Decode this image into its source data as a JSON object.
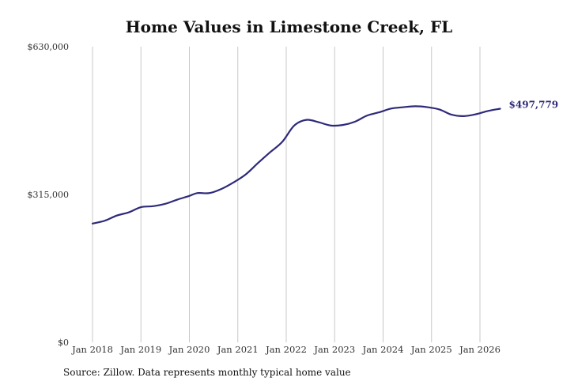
{
  "chart_data": {
    "type": "line",
    "title": "Home Values in Limestone Creek, FL",
    "source": "Source: Zillow. Data represents monthly typical home value",
    "ylim": [
      0,
      630000
    ],
    "yticks": [
      {
        "value": 0,
        "label": "$0"
      },
      {
        "value": 315000,
        "label": "$315,000"
      },
      {
        "value": 630000,
        "label": "$630,000"
      }
    ],
    "xticks": [
      "Jan 2018",
      "Jan 2019",
      "Jan 2020",
      "Jan 2021",
      "Jan 2022",
      "Jan 2023",
      "Jan 2024",
      "Jan 2025",
      "Jan 2026"
    ],
    "grid": "vertical",
    "line_color": "#2e2a7a",
    "end_label": "$497,779",
    "series": [
      {
        "x": [
          "2018-01",
          "2018-04",
          "2018-07",
          "2018-10",
          "2019-01",
          "2019-04",
          "2019-07",
          "2019-10",
          "2020-01",
          "2020-03",
          "2020-06",
          "2020-09",
          "2020-12",
          "2021-03",
          "2021-06",
          "2021-09",
          "2021-12",
          "2022-03",
          "2022-06",
          "2022-09",
          "2022-12",
          "2023-03",
          "2023-06",
          "2023-09",
          "2023-12",
          "2024-03",
          "2024-06",
          "2024-09",
          "2024-12",
          "2025-03",
          "2025-06",
          "2025-09",
          "2025-12",
          "2026-03",
          "2026-06"
        ],
        "values": [
          253000,
          259000,
          270000,
          277000,
          288000,
          290000,
          295000,
          304000,
          312000,
          318000,
          318000,
          327000,
          341000,
          358000,
          382000,
          405000,
          427000,
          462000,
          474000,
          469000,
          462000,
          463000,
          470000,
          483000,
          490000,
          498000,
          501000,
          503000,
          501000,
          496000,
          485000,
          482000,
          486000,
          493000,
          497779
        ]
      }
    ]
  }
}
